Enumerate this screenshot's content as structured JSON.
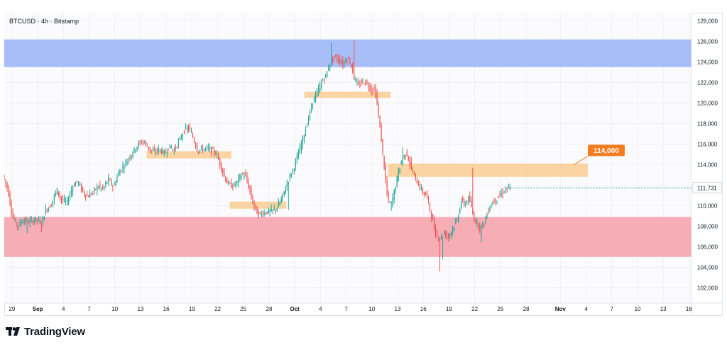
{
  "header": {
    "symbol": "BTCUSD · 4h · Bitstamp"
  },
  "brand": {
    "name": "TradingView"
  },
  "chart_data": {
    "type": "candlestick",
    "symbol": "BTCUSD",
    "timeframe": "4h",
    "exchange": "Bitstamp",
    "ylim": [
      100500,
      128800
    ],
    "y_ticks": [
      102000,
      104000,
      106000,
      108000,
      110000,
      112000,
      114000,
      116000,
      118000,
      120000,
      122000,
      124000,
      126000,
      128000
    ],
    "y_tick_labels": [
      "102,000",
      "104,000",
      "106,000",
      "108,000",
      "110,000",
      "112,000",
      "114,000",
      "116,000",
      "118,000",
      "120,000",
      "122,000",
      "124,000",
      "126,000",
      "128,000"
    ],
    "x_ticks": [
      {
        "label": "29",
        "day": -3,
        "bold": false
      },
      {
        "label": "Sep",
        "day": 0,
        "bold": true
      },
      {
        "label": "4",
        "day": 3,
        "bold": false
      },
      {
        "label": "7",
        "day": 6,
        "bold": false
      },
      {
        "label": "10",
        "day": 9,
        "bold": false
      },
      {
        "label": "13",
        "day": 12,
        "bold": false
      },
      {
        "label": "16",
        "day": 15,
        "bold": false
      },
      {
        "label": "19",
        "day": 18,
        "bold": false
      },
      {
        "label": "22",
        "day": 21,
        "bold": false
      },
      {
        "label": "25",
        "day": 24,
        "bold": false
      },
      {
        "label": "28",
        "day": 27,
        "bold": false
      },
      {
        "label": "Oct",
        "day": 30,
        "bold": true
      },
      {
        "label": "4",
        "day": 33,
        "bold": false
      },
      {
        "label": "7",
        "day": 36,
        "bold": false
      },
      {
        "label": "10",
        "day": 39,
        "bold": false
      },
      {
        "label": "13",
        "day": 42,
        "bold": false
      },
      {
        "label": "16",
        "day": 45,
        "bold": false
      },
      {
        "label": "19",
        "day": 48,
        "bold": false
      },
      {
        "label": "22",
        "day": 51,
        "bold": false
      },
      {
        "label": "25",
        "day": 54,
        "bold": false
      },
      {
        "label": "28",
        "day": 57,
        "bold": false
      },
      {
        "label": "Nov",
        "day": 61,
        "bold": true
      },
      {
        "label": "4",
        "day": 64,
        "bold": false
      },
      {
        "label": "7",
        "day": 67,
        "bold": false
      },
      {
        "label": "10",
        "day": 70,
        "bold": false
      },
      {
        "label": "13",
        "day": 73,
        "bold": false
      },
      {
        "label": "16",
        "day": 76,
        "bold": false
      }
    ],
    "x_range_days": [
      -3.9,
      76.3
    ],
    "last_price": 111731,
    "last_price_label": "111,731",
    "zones": [
      {
        "kind": "resistance",
        "color": "#a3baf9",
        "from_day": -3.9,
        "to_day": 76.3,
        "low": 123500,
        "high": 126200
      },
      {
        "kind": "support",
        "color": "#f6a9b2",
        "from_day": -3.9,
        "to_day": 76.3,
        "low": 105000,
        "high": 108900
      },
      {
        "kind": "level",
        "color": "#f9cd93",
        "from_day": 12.7,
        "to_day": 22.6,
        "low": 114600,
        "high": 115300
      },
      {
        "kind": "level",
        "color": "#f9cd93",
        "from_day": 22.4,
        "to_day": 29.0,
        "low": 109700,
        "high": 110400
      },
      {
        "kind": "level",
        "color": "#f9cd93",
        "from_day": 31.1,
        "to_day": 41.2,
        "low": 120500,
        "high": 121100
      },
      {
        "kind": "level",
        "color": "#f9cd93",
        "from_day": 40.9,
        "to_day": 64.2,
        "low": 112800,
        "high": 114100
      }
    ],
    "callout": {
      "label": "114,000",
      "color": "#f57c1f",
      "anchor_day": 64.2,
      "anchor_price": 114000
    },
    "colors": {
      "up": "#26a69a",
      "down": "#ef5350",
      "grid": "#eef0f3",
      "axis_text": "#131722"
    },
    "path_points": [
      [
        -3.9,
        113000
      ],
      [
        -3.3,
        111500
      ],
      [
        -2.8,
        109000
      ],
      [
        -2.2,
        108000
      ],
      [
        -1.6,
        108600
      ],
      [
        -0.8,
        108400
      ],
      [
        0,
        108700
      ],
      [
        0.6,
        108300
      ],
      [
        1.1,
        109600
      ],
      [
        1.7,
        110000
      ],
      [
        2.4,
        111600
      ],
      [
        2.9,
        110600
      ],
      [
        3.6,
        110300
      ],
      [
        4.2,
        111800
      ],
      [
        4.8,
        112400
      ],
      [
        5.5,
        111200
      ],
      [
        6.0,
        110900
      ],
      [
        6.6,
        111300
      ],
      [
        7.2,
        111900
      ],
      [
        7.8,
        111600
      ],
      [
        8.4,
        112600
      ],
      [
        9.0,
        111800
      ],
      [
        9.6,
        113200
      ],
      [
        10.3,
        114000
      ],
      [
        10.9,
        114800
      ],
      [
        11.4,
        115400
      ],
      [
        11.9,
        116000
      ],
      [
        12.5,
        116300
      ],
      [
        13.2,
        115500
      ],
      [
        13.8,
        115200
      ],
      [
        14.3,
        115500
      ],
      [
        15.0,
        115100
      ],
      [
        15.5,
        115800
      ],
      [
        16.1,
        115400
      ],
      [
        16.8,
        116500
      ],
      [
        17.3,
        117400
      ],
      [
        17.8,
        117600
      ],
      [
        18.3,
        116600
      ],
      [
        18.8,
        115400
      ],
      [
        19.4,
        115500
      ],
      [
        20.0,
        115600
      ],
      [
        20.6,
        115300
      ],
      [
        21.0,
        115100
      ],
      [
        21.6,
        113700
      ],
      [
        22.2,
        112300
      ],
      [
        22.8,
        111900
      ],
      [
        23.3,
        112100
      ],
      [
        23.8,
        112900
      ],
      [
        24.3,
        113100
      ],
      [
        24.8,
        111800
      ],
      [
        25.3,
        110200
      ],
      [
        25.9,
        109100
      ],
      [
        26.4,
        109300
      ],
      [
        27.0,
        109400
      ],
      [
        27.5,
        109500
      ],
      [
        28.0,
        109700
      ],
      [
        28.6,
        110600
      ],
      [
        29.0,
        111500
      ],
      [
        29.6,
        112900
      ],
      [
        30.1,
        113800
      ],
      [
        30.6,
        115100
      ],
      [
        31.2,
        116800
      ],
      [
        31.8,
        118600
      ],
      [
        32.3,
        120300
      ],
      [
        32.8,
        121000
      ],
      [
        33.3,
        122100
      ],
      [
        33.8,
        122700
      ],
      [
        34.3,
        124000
      ],
      [
        34.8,
        124500
      ],
      [
        35.3,
        124200
      ],
      [
        35.8,
        123800
      ],
      [
        36.2,
        124400
      ],
      [
        36.7,
        123900
      ],
      [
        37.1,
        122400
      ],
      [
        37.6,
        121700
      ],
      [
        38.1,
        122100
      ],
      [
        38.6,
        121900
      ],
      [
        39.1,
        121300
      ],
      [
        39.5,
        121400
      ],
      [
        40.0,
        118500
      ],
      [
        40.5,
        114500
      ],
      [
        41.0,
        110600
      ],
      [
        41.4,
        110100
      ],
      [
        41.9,
        111800
      ],
      [
        42.3,
        113500
      ],
      [
        42.7,
        114500
      ],
      [
        43.2,
        115200
      ],
      [
        43.7,
        113800
      ],
      [
        44.2,
        112700
      ],
      [
        44.7,
        111900
      ],
      [
        45.1,
        111300
      ],
      [
        45.6,
        110900
      ],
      [
        46.1,
        109000
      ],
      [
        46.6,
        107200
      ],
      [
        47.1,
        106800
      ],
      [
        47.6,
        107300
      ],
      [
        48.1,
        107000
      ],
      [
        48.6,
        107800
      ],
      [
        49.1,
        108600
      ],
      [
        49.6,
        110500
      ],
      [
        50.0,
        110100
      ],
      [
        50.5,
        110800
      ],
      [
        51.0,
        108900
      ],
      [
        51.4,
        108300
      ],
      [
        51.8,
        107800
      ],
      [
        52.3,
        108400
      ],
      [
        52.8,
        109700
      ],
      [
        53.3,
        110400
      ],
      [
        53.8,
        110700
      ],
      [
        54.3,
        111200
      ],
      [
        54.8,
        111600
      ],
      [
        55.2,
        111731
      ]
    ],
    "spikes": [
      {
        "day": -1.2,
        "low": 107300
      },
      {
        "day": 0.4,
        "low": 107400
      },
      {
        "day": 37.0,
        "high": 126100
      },
      {
        "day": 34.3,
        "high": 125900
      },
      {
        "day": 41.2,
        "low": 109500
      },
      {
        "day": 46.9,
        "low": 103600
      },
      {
        "day": 47.3,
        "low": 104800
      },
      {
        "day": 50.8,
        "high": 113700
      },
      {
        "day": 51.7,
        "low": 106400
      },
      {
        "day": 42.6,
        "high": 115700
      },
      {
        "day": 29.3,
        "low": 109600
      },
      {
        "day": 25.8,
        "low": 108800
      }
    ]
  }
}
